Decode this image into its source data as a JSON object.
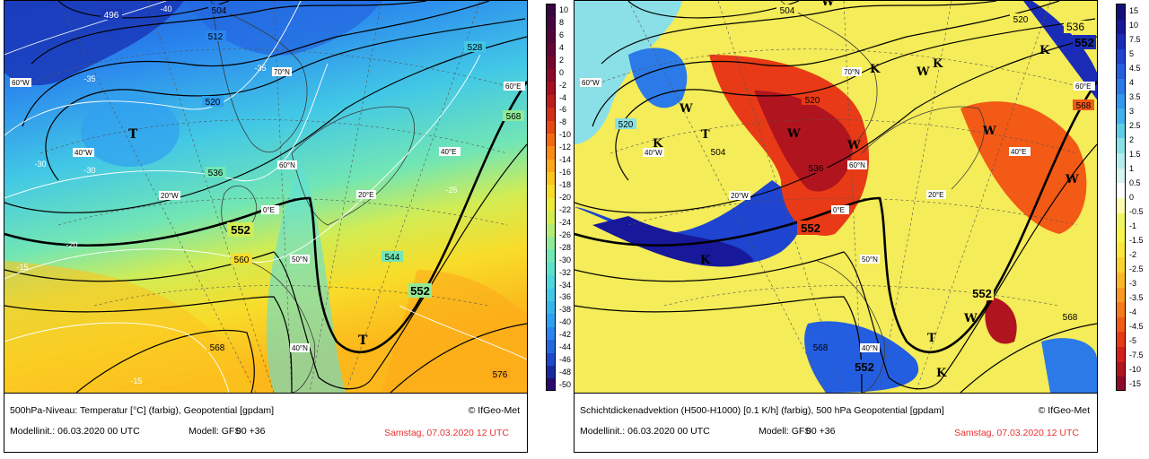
{
  "left_panel": {
    "caption_title": "500hPa-Niveau: Temperatur [°C] (farbig), Geopotential [gpdam]",
    "copyright": "© IfGeo-Met",
    "model_init": "Modellinit.: 06.03.2020 00 UTC",
    "model": "Modell: GFS",
    "step": "00 +36",
    "valid": "Samstag, 07.03.2020 12 UTC",
    "legend_ticks": [
      "10",
      "8",
      "6",
      "4",
      "2",
      "0",
      "-2",
      "-4",
      "-6",
      "-8",
      "-10",
      "-12",
      "-14",
      "-16",
      "-18",
      "-20",
      "-22",
      "-24",
      "-26",
      "-28",
      "-30",
      "-32",
      "-34",
      "-36",
      "-38",
      "-40",
      "-42",
      "-44",
      "-46",
      "-48",
      "-50"
    ],
    "legend_colors": [
      "#2a0a6e",
      "#1a2a9e",
      "#1e48c8",
      "#2468e0",
      "#2a86ee",
      "#30a0f0",
      "#38b6ec",
      "#42c8e6",
      "#4ed6dc",
      "#5ee0cc",
      "#72e6b4",
      "#90ea96",
      "#b2ec74",
      "#d2ec54",
      "#ecea3a",
      "#f8dc2a",
      "#fcc420",
      "#fca81a",
      "#f88a16",
      "#f06a14",
      "#e44a14",
      "#d23016",
      "#bc1c1c",
      "#a41022",
      "#8c0a2a",
      "#760830",
      "#640636",
      "#54063c",
      "#46063e",
      "#380640"
    ],
    "contour_labels": [
      "496",
      "504",
      "512",
      "520",
      "528",
      "536",
      "544",
      "552",
      "560",
      "568",
      "576"
    ],
    "temp_labels": [
      "-40",
      "-35",
      "-30",
      "-25",
      "-20",
      "-15"
    ],
    "grid_labels": [
      "60°W",
      "40°W",
      "20°W",
      "0°E",
      "20°E",
      "40°E",
      "60°E",
      "70°N",
      "60°N",
      "50°N",
      "40°N"
    ],
    "pressure_systems": [
      "T",
      "T"
    ]
  },
  "right_panel": {
    "caption_title": "Schichtdickenadvektion (H500-H1000) [0.1 K/h] (farbig), 500 hPa Geopotential [gpdam]",
    "copyright": "© IfGeo-Met",
    "model_init": "Modellinit.: 06.03.2020 00 UTC",
    "model": "Modell: GFS",
    "step": "00 +36",
    "valid": "Samstag, 07.03.2020 12 UTC",
    "legend_ticks": [
      "15",
      "10",
      "7.5",
      "5",
      "4.5",
      "4",
      "3.5",
      "3",
      "2.5",
      "2",
      "1.5",
      "1",
      "0.5",
      "0",
      "-0.5",
      "-1",
      "-1.5",
      "-2",
      "-2.5",
      "-3",
      "-3.5",
      "-4",
      "-4.5",
      "-5",
      "-7.5",
      "-10",
      "-15"
    ],
    "legend_colors": [
      "#8c0a2a",
      "#b0141e",
      "#d42018",
      "#e83a16",
      "#f25a16",
      "#f67a1a",
      "#f89a20",
      "#fab828",
      "#fcd230",
      "#fce63c",
      "#f8f44c",
      "#f0f464",
      "#fcfcb0",
      "#ffffff",
      "#d6f4f0",
      "#b4ecec",
      "#8ae0e6",
      "#62cce6",
      "#44b2ea",
      "#3496ec",
      "#2c7ae8",
      "#245ee0",
      "#1e44d0",
      "#1a2cb6",
      "#18189a",
      "#141078"
    ],
    "contour_labels": [
      "504",
      "520",
      "536",
      "552",
      "568"
    ],
    "grid_labels": [
      "60°W",
      "40°W",
      "20°W",
      "0°E",
      "20°E",
      "40°E",
      "60°E",
      "70°N",
      "60°N",
      "50°N",
      "40°N"
    ],
    "pressure_systems": [
      "W",
      "W",
      "W",
      "W",
      "W",
      "W",
      "W",
      "W",
      "K",
      "K",
      "K",
      "K",
      "K",
      "K",
      "T",
      "T"
    ]
  }
}
